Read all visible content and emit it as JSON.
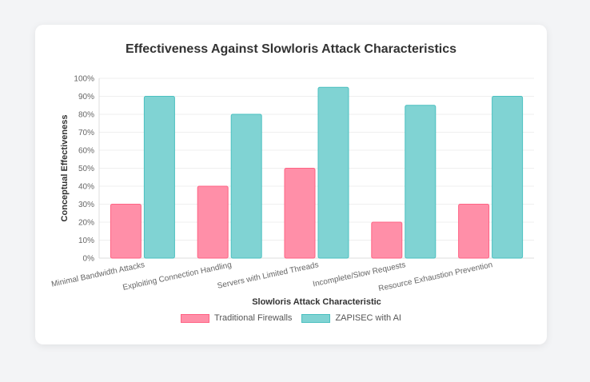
{
  "chart_data": {
    "type": "bar",
    "title": "Effectiveness Against Slowloris Attack Characteristics",
    "xlabel": "Slowloris Attack Characteristic",
    "ylabel": "Conceptual Effectiveness",
    "ylim": [
      0,
      100
    ],
    "y_ticks": [
      "0%",
      "10%",
      "20%",
      "30%",
      "40%",
      "50%",
      "60%",
      "70%",
      "80%",
      "90%",
      "100%"
    ],
    "categories": [
      "Minimal Bandwidth Attacks",
      "Exploiting Connection Handling",
      "Servers with Limited Threads",
      "Incomplete/Slow Requests",
      "Resource Exhaustion Prevention"
    ],
    "series": [
      {
        "name": "Traditional Firewalls",
        "values": [
          30,
          40,
          50,
          20,
          30
        ],
        "color": "#ff8fa8",
        "border": "#ff6384"
      },
      {
        "name": "ZAPISEC with AI",
        "values": [
          90,
          80,
          95,
          85,
          90
        ],
        "color": "#80d3d3",
        "border": "#4bc0c0"
      }
    ],
    "grid": true,
    "legend_position": "bottom"
  }
}
